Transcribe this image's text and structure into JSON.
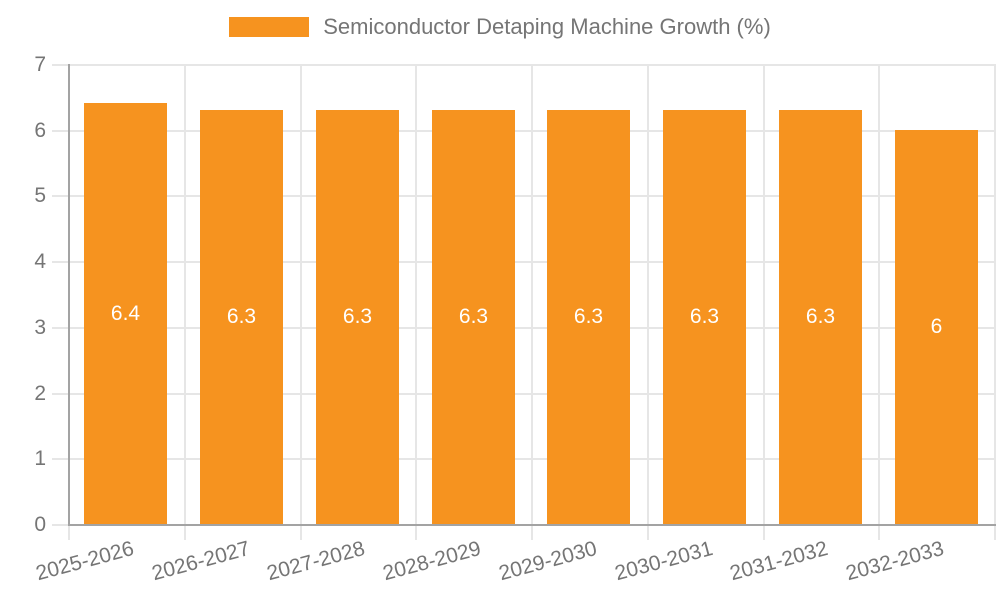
{
  "legend": {
    "label": "Semiconductor Detaping Machine Growth (%)",
    "swatch_color": "#f6931f"
  },
  "chart_data": {
    "type": "bar",
    "title": "Semiconductor Detaping Machine Growth (%)",
    "categories": [
      "2025-2026",
      "2026-2027",
      "2027-2028",
      "2028-2029",
      "2029-2030",
      "2030-2031",
      "2031-2032",
      "2032-2033"
    ],
    "values": [
      6.4,
      6.3,
      6.3,
      6.3,
      6.3,
      6.3,
      6.3,
      6
    ],
    "value_labels": [
      "6.4",
      "6.3",
      "6.3",
      "6.3",
      "6.3",
      "6.3",
      "6.3",
      "6"
    ],
    "xlabel": "",
    "ylabel": "",
    "ylim": [
      0,
      7
    ],
    "ytick_labels": [
      "0",
      "1",
      "2",
      "3",
      "4",
      "5",
      "6",
      "7"
    ],
    "grid": true,
    "legend_position": "top-center",
    "bar_color": "#f6931f",
    "value_label_color": "#ffffff",
    "tick_text_color": "#757575",
    "grid_color": "#e6e6e6",
    "axis_color": "#a3a3a3"
  }
}
